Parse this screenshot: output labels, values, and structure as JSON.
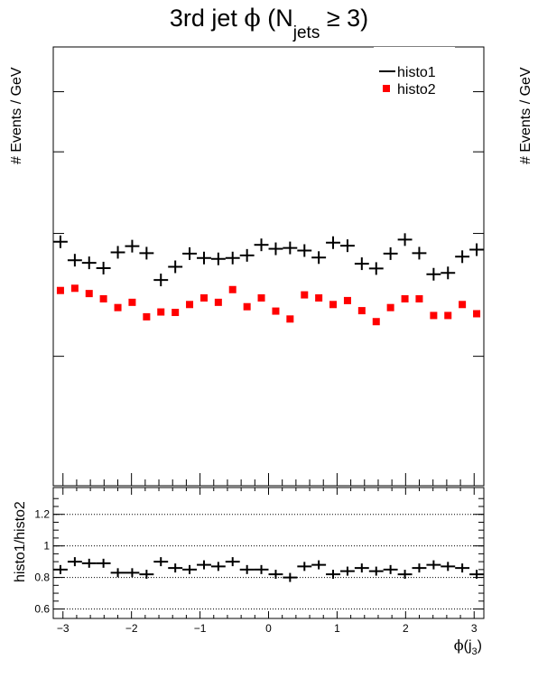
{
  "chart_data": [
    {
      "type": "scatter",
      "panel": "main",
      "title": {
        "prefix": "3rd jet ",
        "phi": "ϕ",
        "open": " (N",
        "sub": "jets",
        "rest": " ≥ 3)"
      },
      "ylabel": "# Events / GeV",
      "ylabel_right": "# Events / GeV",
      "xlim": [
        -3.1416,
        3.1416
      ],
      "ylim": [
        0,
        1
      ],
      "grid": false,
      "legend": {
        "placement": "top-right",
        "entries": [
          {
            "label": "histo1",
            "marker": "line",
            "color": "#000000"
          },
          {
            "label": "histo2",
            "marker": "square",
            "color": "#ff0000"
          }
        ]
      },
      "bin_width": 0.2094,
      "x": [
        -3.037,
        -2.827,
        -2.618,
        -2.409,
        -2.199,
        -1.99,
        -1.78,
        -1.571,
        -1.361,
        -1.152,
        -0.942,
        -0.733,
        -0.524,
        -0.314,
        -0.105,
        0.105,
        0.314,
        0.524,
        0.733,
        0.942,
        1.152,
        1.361,
        1.571,
        1.78,
        1.99,
        2.199,
        2.409,
        2.618,
        2.827,
        3.037
      ],
      "series": [
        {
          "name": "histo1",
          "color": "#000000",
          "style": "cross",
          "values": [
            0.556,
            0.514,
            0.508,
            0.496,
            0.532,
            0.546,
            0.53,
            0.469,
            0.499,
            0.529,
            0.519,
            0.517,
            0.519,
            0.525,
            0.549,
            0.54,
            0.542,
            0.536,
            0.52,
            0.554,
            0.547,
            0.506,
            0.495,
            0.529,
            0.561,
            0.53,
            0.482,
            0.485,
            0.522,
            0.538
          ]
        },
        {
          "name": "histo2",
          "color": "#ff0000",
          "style": "square",
          "values": [
            0.445,
            0.45,
            0.438,
            0.426,
            0.406,
            0.418,
            0.385,
            0.396,
            0.395,
            0.413,
            0.428,
            0.418,
            0.447,
            0.408,
            0.428,
            0.398,
            0.38,
            0.435,
            0.428,
            0.413,
            0.422,
            0.399,
            0.374,
            0.406,
            0.426,
            0.426,
            0.388,
            0.388,
            0.413,
            0.392
          ]
        }
      ]
    },
    {
      "type": "scatter",
      "panel": "ratio",
      "ylabel": "histo1/histo2",
      "xlabel": {
        "phi": "ϕ",
        "open": "(j",
        "sub": "3",
        "close": ")"
      },
      "xlim": [
        -3.1416,
        3.1416
      ],
      "ylim": [
        0.54,
        1.37
      ],
      "xticks": [
        -3,
        -2,
        -1,
        0,
        1,
        2,
        3
      ],
      "xtick_labels": [
        "−3",
        "−2",
        "−1",
        "0",
        "1",
        "2",
        "3"
      ],
      "yticks": [
        0.6,
        0.8,
        1,
        1.2
      ],
      "ytick_labels": [
        "0.6",
        "0.8",
        "1",
        "1.2"
      ],
      "grid": "horizontal-dotted",
      "x": [
        -3.037,
        -2.827,
        -2.618,
        -2.409,
        -2.199,
        -1.99,
        -1.78,
        -1.571,
        -1.361,
        -1.152,
        -0.942,
        -0.733,
        -0.524,
        -0.314,
        -0.105,
        0.105,
        0.314,
        0.524,
        0.733,
        0.942,
        1.152,
        1.361,
        1.571,
        1.78,
        1.99,
        2.199,
        2.409,
        2.618,
        2.827,
        3.037
      ],
      "series": [
        {
          "name": "",
          "color": "#000000",
          "style": "cross",
          "values": [
            0.85,
            0.9,
            0.89,
            0.89,
            0.83,
            0.83,
            0.82,
            0.9,
            0.86,
            0.85,
            0.88,
            0.87,
            0.9,
            0.85,
            0.85,
            0.82,
            0.8,
            0.87,
            0.88,
            0.82,
            0.84,
            0.86,
            0.84,
            0.85,
            0.82,
            0.86,
            0.88,
            0.87,
            0.86,
            0.82
          ]
        }
      ]
    }
  ]
}
